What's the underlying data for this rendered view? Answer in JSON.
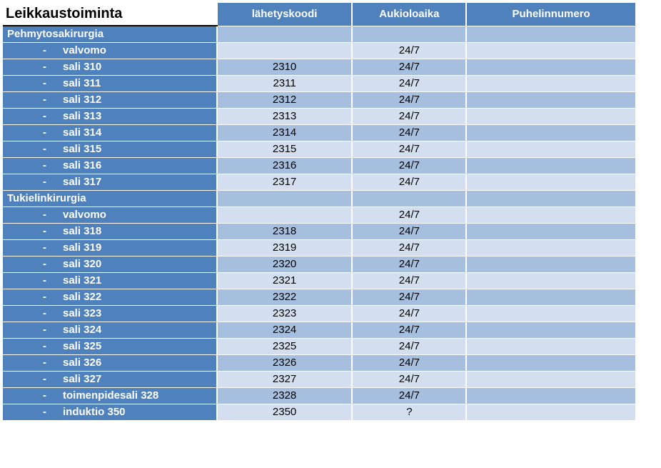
{
  "table": {
    "title": "Leikkaustoiminta",
    "headers": {
      "code": "lähetyskoodi",
      "hours": "Aukioloaika",
      "phone": "Puhelinnumero"
    },
    "colors": {
      "header_bg": "#4f81bd",
      "header_text": "#ffffff",
      "first_col_bg": "#4f81bd",
      "first_col_text": "#ffffff",
      "row_even_bg": "#a7bfde",
      "row_odd_bg": "#d3dfee",
      "data_text": "#000000",
      "title_border": "#000000"
    },
    "font": {
      "family": "Arial",
      "title_size": 20,
      "header_size": 15,
      "body_size": 15
    },
    "column_widths": {
      "first": 300,
      "code": 190,
      "hours": 160,
      "phone": 238
    },
    "rows": [
      {
        "type": "section",
        "label": "Pehmytosakirurgia",
        "code": "",
        "hours": "",
        "phone": "",
        "stripe": "even"
      },
      {
        "type": "sub",
        "label": "valvomo",
        "code": "",
        "hours": "24/7",
        "phone": "",
        "stripe": "odd"
      },
      {
        "type": "sub",
        "label": "sali 310",
        "code": "2310",
        "hours": "24/7",
        "phone": "",
        "stripe": "even"
      },
      {
        "type": "sub",
        "label": "sali 311",
        "code": "2311",
        "hours": "24/7",
        "phone": "",
        "stripe": "odd"
      },
      {
        "type": "sub",
        "label": "sali 312",
        "code": "2312",
        "hours": "24/7",
        "phone": "",
        "stripe": "even"
      },
      {
        "type": "sub",
        "label": "sali 313",
        "code": "2313",
        "hours": "24/7",
        "phone": "",
        "stripe": "odd"
      },
      {
        "type": "sub",
        "label": "sali 314",
        "code": "2314",
        "hours": "24/7",
        "phone": "",
        "stripe": "even"
      },
      {
        "type": "sub",
        "label": "sali 315",
        "code": "2315",
        "hours": "24/7",
        "phone": "",
        "stripe": "odd"
      },
      {
        "type": "sub",
        "label": "sali 316",
        "code": "2316",
        "hours": "24/7",
        "phone": "",
        "stripe": "even"
      },
      {
        "type": "sub",
        "label": "sali 317",
        "code": "2317",
        "hours": "24/7",
        "phone": "",
        "stripe": "odd"
      },
      {
        "type": "section",
        "label": "Tukielinkirurgia",
        "code": "",
        "hours": "",
        "phone": "",
        "stripe": "even"
      },
      {
        "type": "sub",
        "label": "valvomo",
        "code": "",
        "hours": "24/7",
        "phone": "",
        "stripe": "odd"
      },
      {
        "type": "sub",
        "label": "sali 318",
        "code": "2318",
        "hours": "24/7",
        "phone": "",
        "stripe": "even"
      },
      {
        "type": "sub",
        "label": "sali 319",
        "code": "2319",
        "hours": "24/7",
        "phone": "",
        "stripe": "odd"
      },
      {
        "type": "sub",
        "label": "sali 320",
        "code": "2320",
        "hours": "24/7",
        "phone": "",
        "stripe": "even"
      },
      {
        "type": "sub",
        "label": "sali 321",
        "code": "2321",
        "hours": "24/7",
        "phone": "",
        "stripe": "odd"
      },
      {
        "type": "sub",
        "label": "sali 322",
        "code": "2322",
        "hours": "24/7",
        "phone": "",
        "stripe": "even"
      },
      {
        "type": "sub",
        "label": "sali 323",
        "code": "2323",
        "hours": "24/7",
        "phone": "",
        "stripe": "odd"
      },
      {
        "type": "sub",
        "label": "sali 324",
        "code": "2324",
        "hours": "24/7",
        "phone": "",
        "stripe": "even"
      },
      {
        "type": "sub",
        "label": "sali 325",
        "code": "2325",
        "hours": "24/7",
        "phone": "",
        "stripe": "odd"
      },
      {
        "type": "sub",
        "label": "sali 326",
        "code": "2326",
        "hours": "24/7",
        "phone": "",
        "stripe": "even"
      },
      {
        "type": "sub",
        "label": "sali 327",
        "code": "2327",
        "hours": "24/7",
        "phone": "",
        "stripe": "odd"
      },
      {
        "type": "sub",
        "label": "toimenpidesali 328",
        "code": "2328",
        "hours": "24/7",
        "phone": "",
        "stripe": "even"
      },
      {
        "type": "sub",
        "label": "induktio 350",
        "code": "2350",
        "hours": "?",
        "phone": "",
        "stripe": "odd"
      }
    ]
  }
}
